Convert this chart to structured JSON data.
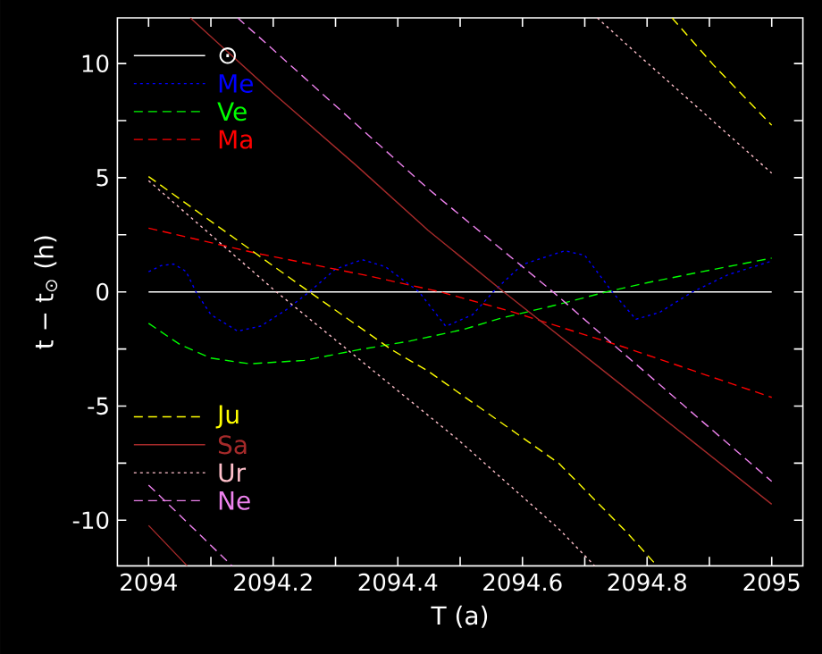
{
  "chart_data": {
    "type": "line",
    "xlabel": "T (a)",
    "ylabel": "t − t$_{⊙}$ (h)",
    "xlim": [
      2093.95,
      2095.05
    ],
    "ylim": [
      -12,
      12
    ],
    "xticks": [
      2094,
      {
        "value": 2094.1,
        "label": null
      },
      2094.2,
      {
        "value": 2094.3,
        "label": null
      },
      2094.4,
      {
        "value": 2094.5,
        "label": null
      },
      2094.6,
      {
        "value": 2094.7,
        "label": null
      },
      2094.8,
      {
        "value": 2094.9,
        "label": null
      },
      2095
    ],
    "yticks": [
      -10,
      {
        "value": -7.5,
        "label": null
      },
      -5,
      {
        "value": -2.5,
        "label": null
      },
      0,
      {
        "value": 2.5,
        "label": null
      },
      5,
      {
        "value": 7.5,
        "label": null
      },
      10
    ],
    "legend": "left",
    "series": [
      {
        "name": "⊙",
        "color": "#ffffff",
        "line_style": "solid",
        "x": [
          2094,
          2095
        ],
        "values": [
          0,
          0
        ]
      },
      {
        "name": "Me",
        "color": "#0000ff",
        "line_style": "dotted",
        "x": [
          2094.0,
          2094.02,
          2094.04,
          2094.06,
          2094.076,
          2094.1,
          2094.143,
          2094.18,
          2094.22,
          2094.258,
          2094.3,
          2094.343,
          2094.38,
          2094.434,
          2094.477,
          2094.52,
          2094.553,
          2094.6,
          2094.668,
          2094.7,
          2094.744,
          2094.782,
          2094.82,
          2094.873,
          2094.93,
          2095.0
        ],
        "values": [
          0.88,
          1.15,
          1.22,
          0.9,
          0,
          -1.0,
          -1.72,
          -1.5,
          -0.8,
          0,
          1.0,
          1.41,
          1.1,
          0,
          -1.51,
          -1.0,
          0,
          1.2,
          1.8,
          1.6,
          0,
          -1.2,
          -0.9,
          0,
          0.75,
          1.35
        ]
      },
      {
        "name": "Ve",
        "color": "#00ff00",
        "line_style": "dashed",
        "x": [
          2094,
          2094.05,
          2094.1,
          2094.162,
          2094.25,
          2094.334,
          2094.42,
          2094.506,
          2094.563,
          2094.65,
          2094.735,
          2094.8,
          2094.878,
          2095
        ],
        "values": [
          -1.38,
          -2.3,
          -2.9,
          -3.15,
          -3.0,
          -2.55,
          -2.15,
          -1.64,
          -1.17,
          -0.6,
          0,
          0.4,
          0.83,
          1.48
        ]
      },
      {
        "name": "Ma",
        "color": "#ff0000",
        "line_style": "dashed",
        "x": [
          2094,
          2094.172,
          2094.353,
          2094.468,
          2094.582,
          2094.763,
          2095
        ],
        "values": [
          2.79,
          1.7,
          0.7,
          0,
          -0.86,
          -2.42,
          -4.62
        ]
      },
      {
        "name": "Ju",
        "color": "#ffff00",
        "line_style": "dashed",
        "x": [
          2094,
          2094.258,
          2094.391,
          2094.448,
          2094.658,
          2094.768,
          2094.816,
          2094.83,
          2094.84,
          2094.906,
          2095
        ],
        "values": [
          5.05,
          0,
          -2.55,
          -3.46,
          -7.5,
          -10.55,
          -12,
          null,
          12,
          9.95,
          7.3
        ]
      },
      {
        "name": "Sa",
        "color": "#a52a2a",
        "line_style": "solid",
        "x": [
          2094,
          2094.062,
          2094.064,
          2094.067,
          2094.2,
          2094.334,
          2094.448,
          2094.57,
          2094.734,
          2094.878,
          2095
        ],
        "values": [
          -10.23,
          -12,
          null,
          12,
          8.7,
          5.52,
          2.71,
          0,
          -3.54,
          -6.66,
          -9.3
        ]
      },
      {
        "name": "Ur",
        "color": "#ffc0cb",
        "line_style": "dotted",
        "x": [
          2094,
          2094.205,
          2094.496,
          2094.658,
          2094.716,
          2094.718,
          2094.72,
          2094.782,
          2095
        ],
        "values": [
          4.87,
          0,
          -6.46,
          -10.37,
          -12,
          null,
          12,
          10.47,
          5.2
        ]
      },
      {
        "name": "Ne",
        "color": "#ee82ee",
        "line_style": "dashed",
        "x": [
          2094,
          2094.134,
          2094.138,
          2094.143,
          2094.448,
          2094.649,
          2094.734,
          2095
        ],
        "values": [
          -8.46,
          -12,
          null,
          12,
          4.53,
          0,
          -2.03,
          -8.3
        ]
      }
    ]
  }
}
